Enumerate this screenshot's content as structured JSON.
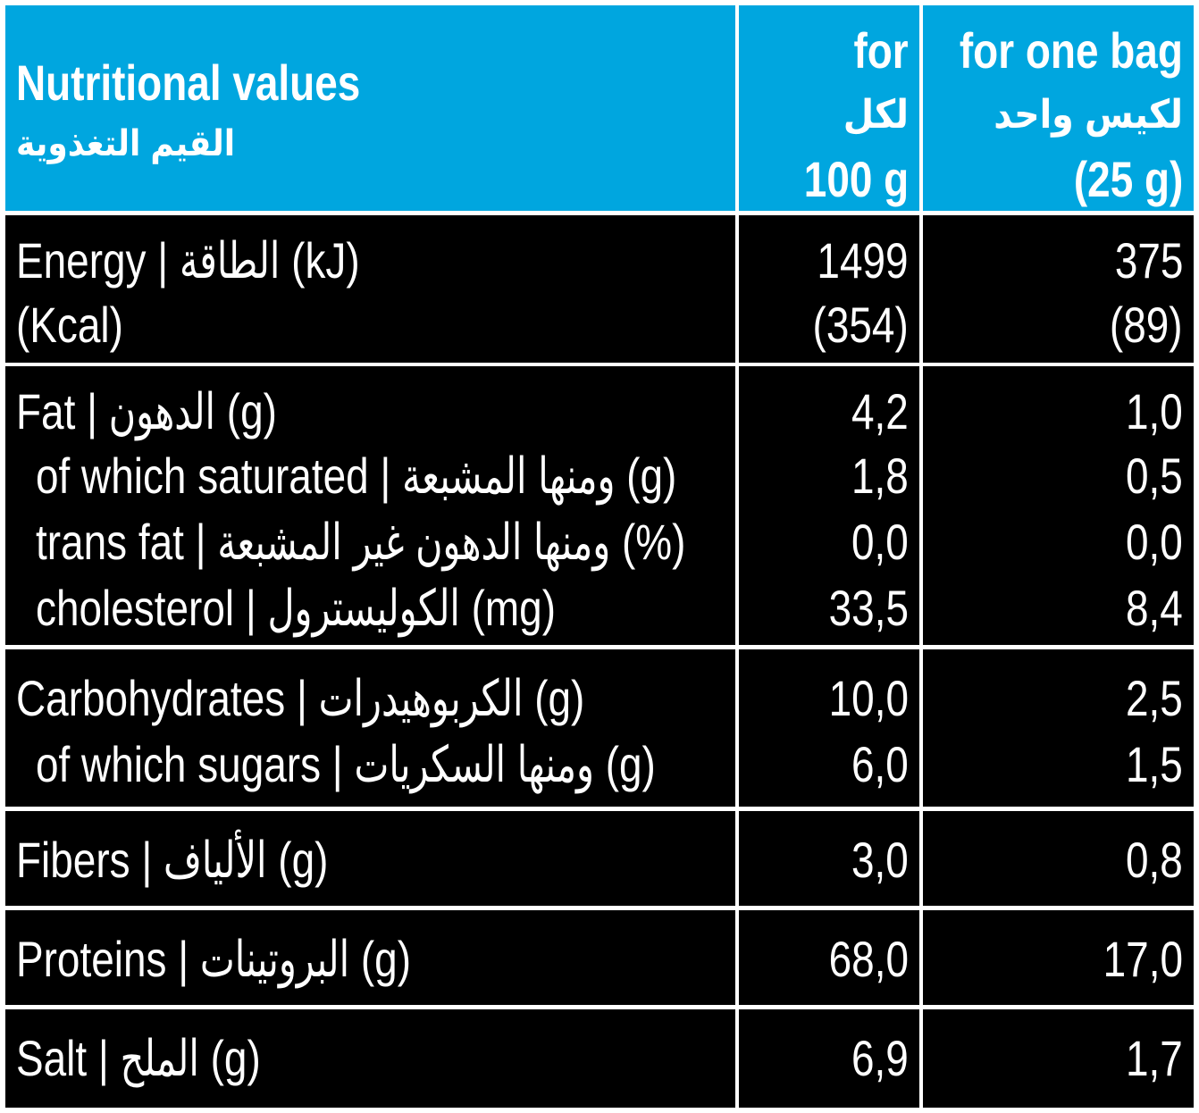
{
  "header": {
    "title_en": "Nutritional values",
    "title_ar": "القيم التغذوية",
    "col1": [
      "for",
      "لكل",
      "100 g"
    ],
    "col2": [
      "for one bag",
      "لكيس واحد",
      "(25 g)"
    ]
  },
  "rows": {
    "energy": {
      "labels": [
        "Energy | الطاقة (kJ)",
        "(Kcal)"
      ],
      "per100": [
        "1499",
        "(354)"
      ],
      "perBag": [
        "375",
        "(89)"
      ]
    },
    "fat": {
      "labels": [
        "Fat | الدهون (g)",
        "of which saturated | ومنها المشبعة (g)",
        "trans fat | ومنها الدهون غير المشبعة (%)",
        "cholesterol | الكوليسترول (mg)"
      ],
      "per100": [
        "4,2",
        "1,8",
        "0,0",
        "33,5"
      ],
      "perBag": [
        "1,0",
        "0,5",
        "0,0",
        "8,4"
      ]
    },
    "carbs": {
      "labels": [
        "Carbohydrates | الكربوهيدرات (g)",
        "of which sugars | ومنها السكريات (g)"
      ],
      "per100": [
        "10,0",
        "6,0"
      ],
      "perBag": [
        "2,5",
        "1,5"
      ]
    },
    "fibers": {
      "labels": [
        "Fibers | الألياف (g)"
      ],
      "per100": [
        "3,0"
      ],
      "perBag": [
        "0,8"
      ]
    },
    "proteins": {
      "labels": [
        "Proteins | البروتينات (g)"
      ],
      "per100": [
        "68,0"
      ],
      "perBag": [
        "17,0"
      ]
    },
    "salt": {
      "labels": [
        "Salt | الملح (g)"
      ],
      "per100": [
        "6,9"
      ],
      "perBag": [
        "1,7"
      ]
    }
  },
  "colors": {
    "header_bg": "#00a6df",
    "body_bg": "#000000",
    "text": "#ffffff",
    "grid": "#ffffff"
  }
}
